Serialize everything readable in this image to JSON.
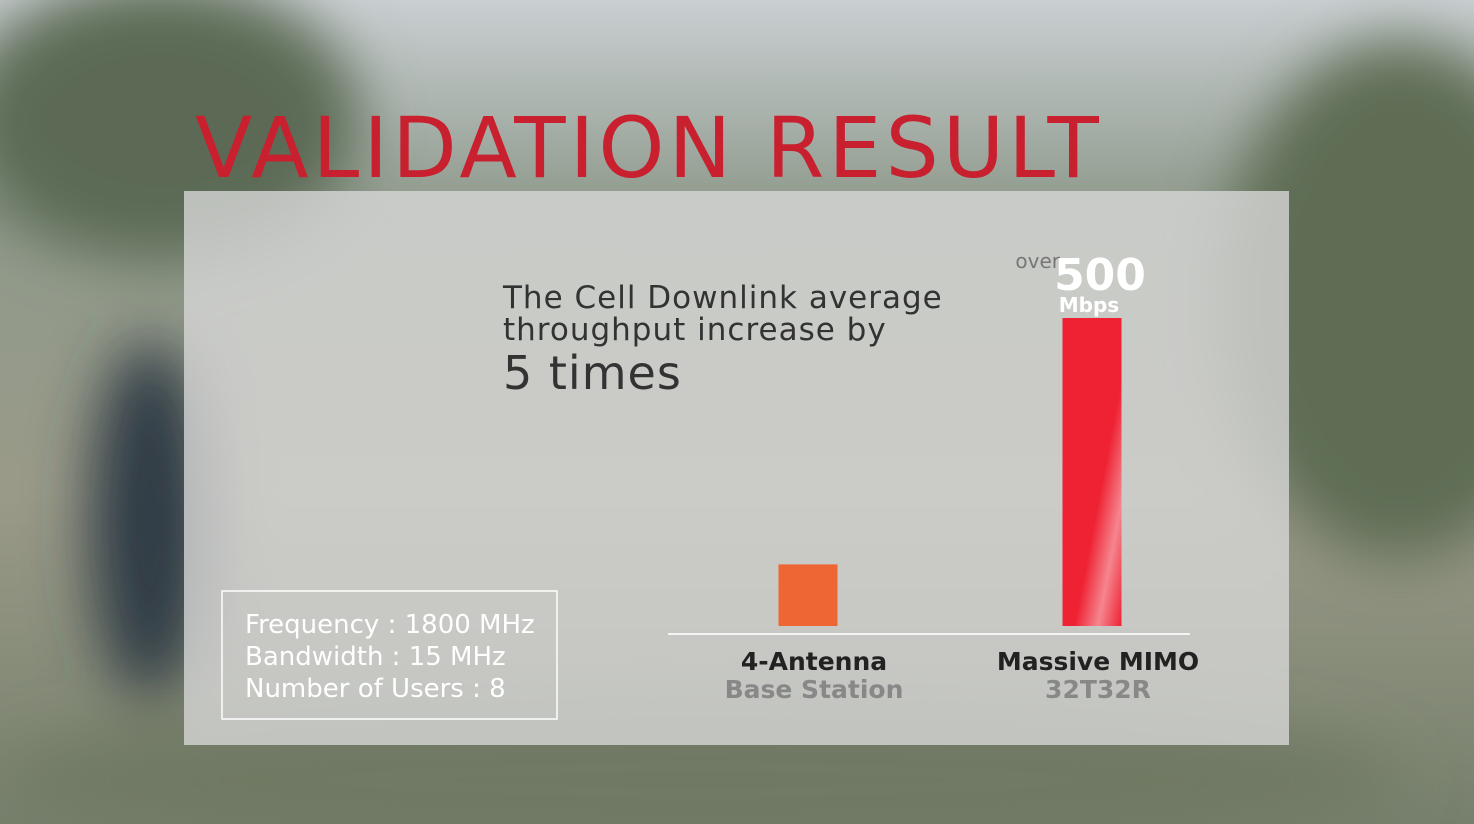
{
  "title": "VALIDATION RESULT",
  "headline": {
    "lines": [
      "The Cell Downlink average",
      "throughput increase by"
    ],
    "emphasis": "5 times"
  },
  "info_box": [
    "Frequency : 1800 MHz",
    "Bandwidth : 15 MHz",
    "Number of Users : 8"
  ],
  "chart_data": {
    "type": "bar",
    "categories": [
      "4-Antenna",
      "Massive MIMO"
    ],
    "category_sublabels": [
      "Base Station",
      "32T32R"
    ],
    "values": [
      100,
      500
    ],
    "value_labels": [
      null,
      "500"
    ],
    "value_label_prefix": "over",
    "unit": "Mbps",
    "colors": [
      "#ee6633",
      "#ee2233"
    ]
  }
}
